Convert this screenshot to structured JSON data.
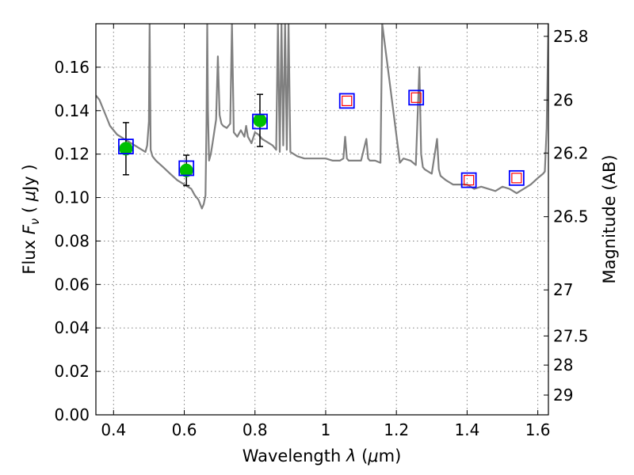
{
  "chart_data": {
    "type": "scatter",
    "title": "",
    "xlabel": {
      "prefix": "Wavelength  ",
      "symbol": "λ",
      "unit_open": " (",
      "unit_mu": "μ",
      "unit_rest": "m)"
    },
    "ylabel": {
      "prefix": "Flux  ",
      "symbol": "F",
      "subscript": "ν",
      "unit_open": "  ( ",
      "unit_mu": "μ",
      "unit_rest": "Jy )"
    },
    "y2label": "Magnitude (AB)",
    "xlim": [
      0.35,
      1.63
    ],
    "ylim": [
      0.0,
      0.18
    ],
    "grid": true,
    "x_ticks": [
      {
        "value": 0.4,
        "label": "0.4"
      },
      {
        "value": 0.6,
        "label": "0.6"
      },
      {
        "value": 0.8,
        "label": "0.8"
      },
      {
        "value": 1.0,
        "label": "1"
      },
      {
        "value": 1.2,
        "label": "1.2"
      },
      {
        "value": 1.4,
        "label": "1.4"
      },
      {
        "value": 1.6,
        "label": "1.6"
      }
    ],
    "y_ticks": [
      {
        "value": 0.0,
        "label": "0.00"
      },
      {
        "value": 0.02,
        "label": "0.02"
      },
      {
        "value": 0.04,
        "label": "0.04"
      },
      {
        "value": 0.06,
        "label": "0.06"
      },
      {
        "value": 0.08,
        "label": "0.08"
      },
      {
        "value": 0.1,
        "label": "0.10"
      },
      {
        "value": 0.12,
        "label": "0.12"
      },
      {
        "value": 0.14,
        "label": "0.14"
      },
      {
        "value": 0.16,
        "label": "0.16"
      }
    ],
    "y2_ticks": [
      {
        "flux": 0.1742,
        "label": "25.8"
      },
      {
        "flux": 0.1449,
        "label": "26"
      },
      {
        "flux": 0.1205,
        "label": "26.2"
      },
      {
        "flux": 0.0912,
        "label": "26.5"
      },
      {
        "flux": 0.0575,
        "label": "27"
      },
      {
        "flux": 0.0363,
        "label": "27.5"
      },
      {
        "flux": 0.0229,
        "label": "28"
      },
      {
        "flux": 0.0091,
        "label": "29"
      }
    ],
    "series": [
      {
        "kind": "model_sed",
        "color": "#808080",
        "x": [
          0.35,
          0.36,
          0.37,
          0.38,
          0.39,
          0.4,
          0.41,
          0.42,
          0.43,
          0.44,
          0.45,
          0.46,
          0.47,
          0.48,
          0.49,
          0.495,
          0.5,
          0.502,
          0.505,
          0.51,
          0.52,
          0.54,
          0.56,
          0.58,
          0.6,
          0.62,
          0.63,
          0.64,
          0.645,
          0.65,
          0.655,
          0.66,
          0.663,
          0.665,
          0.667,
          0.67,
          0.675,
          0.68,
          0.69,
          0.695,
          0.7,
          0.705,
          0.71,
          0.72,
          0.73,
          0.735,
          0.74,
          0.75,
          0.76,
          0.77,
          0.775,
          0.78,
          0.79,
          0.8,
          0.81,
          0.82,
          0.83,
          0.84,
          0.85,
          0.86,
          0.865,
          0.87,
          0.875,
          0.88,
          0.885,
          0.89,
          0.895,
          0.9,
          0.92,
          0.94,
          0.96,
          0.98,
          1.0,
          1.02,
          1.04,
          1.05,
          1.055,
          1.06,
          1.065,
          1.08,
          1.1,
          1.115,
          1.12,
          1.125,
          1.14,
          1.155,
          1.16,
          1.21,
          1.22,
          1.24,
          1.255,
          1.26,
          1.265,
          1.27,
          1.275,
          1.28,
          1.3,
          1.315,
          1.32,
          1.325,
          1.34,
          1.36,
          1.38,
          1.4,
          1.42,
          1.44,
          1.46,
          1.48,
          1.5,
          1.52,
          1.53,
          1.54,
          1.55,
          1.56,
          1.58,
          1.6,
          1.615,
          1.62,
          1.625,
          1.63
        ],
        "y": [
          0.147,
          0.145,
          0.141,
          0.137,
          0.133,
          0.131,
          0.129,
          0.128,
          0.127,
          0.126,
          0.125,
          0.124,
          0.123,
          0.122,
          0.121,
          0.124,
          0.135,
          0.18,
          0.122,
          0.119,
          0.117,
          0.114,
          0.111,
          0.108,
          0.106,
          0.104,
          0.101,
          0.099,
          0.097,
          0.095,
          0.097,
          0.101,
          0.135,
          0.18,
          0.14,
          0.117,
          0.12,
          0.125,
          0.136,
          0.165,
          0.138,
          0.134,
          0.133,
          0.132,
          0.134,
          0.18,
          0.13,
          0.128,
          0.131,
          0.128,
          0.133,
          0.128,
          0.125,
          0.13,
          0.129,
          0.127,
          0.126,
          0.125,
          0.124,
          0.122,
          0.18,
          0.121,
          0.18,
          0.124,
          0.18,
          0.122,
          0.18,
          0.121,
          0.119,
          0.118,
          0.118,
          0.118,
          0.118,
          0.117,
          0.117,
          0.118,
          0.128,
          0.118,
          0.117,
          0.117,
          0.117,
          0.127,
          0.118,
          0.117,
          0.117,
          0.116,
          0.18,
          0.116,
          0.118,
          0.117,
          0.115,
          0.137,
          0.16,
          0.12,
          0.114,
          0.113,
          0.111,
          0.127,
          0.113,
          0.11,
          0.108,
          0.106,
          0.106,
          0.106,
          0.104,
          0.105,
          0.104,
          0.103,
          0.105,
          0.104,
          0.103,
          0.102,
          0.103,
          0.104,
          0.106,
          0.109,
          0.111,
          0.112,
          0.132,
          0.18
        ]
      },
      {
        "kind": "observed_fluxes",
        "color": "#00c000",
        "x": [
          0.435,
          0.606,
          0.814
        ],
        "y": [
          0.1225,
          0.1125,
          0.1355
        ],
        "err": [
          0.012,
          0.007,
          0.012
        ]
      },
      {
        "kind": "model_band_fluxes",
        "color": "#0000ff",
        "x": [
          0.435,
          0.606,
          0.814,
          1.06,
          1.256,
          1.405,
          1.54
        ],
        "y": [
          0.1235,
          0.1135,
          0.135,
          0.1445,
          0.146,
          0.108,
          0.109
        ]
      },
      {
        "kind": "upper_limits",
        "color": "#ff0000",
        "x": [
          1.06,
          1.256,
          1.405,
          1.54
        ],
        "y": [
          0.1445,
          0.146,
          0.108,
          0.109
        ]
      }
    ]
  }
}
